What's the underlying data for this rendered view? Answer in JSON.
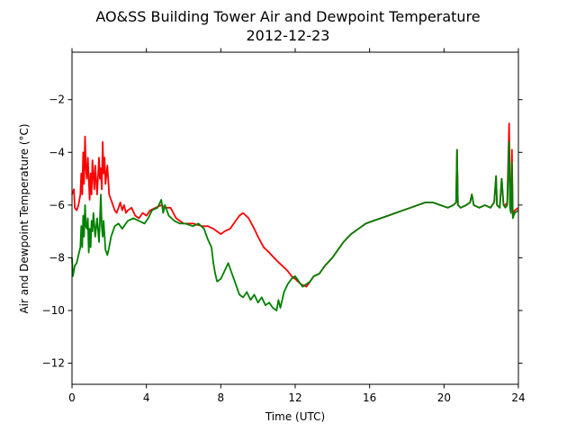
{
  "chart_data": {
    "type": "line",
    "title": "AO&SS Building Tower Air and Dewpoint Temperature",
    "subtitle": "2012-12-23",
    "xlabel": "Time (UTC)",
    "ylabel": "Air and Dewpoint Temperature (°C)",
    "xlim": [
      0,
      24
    ],
    "ylim": [
      -12.8,
      -0.2
    ],
    "xticks": [
      0,
      4,
      8,
      12,
      16,
      20,
      24
    ],
    "yticks": [
      -12,
      -10,
      -8,
      -6,
      -4,
      -2
    ],
    "grid": false,
    "legend": "none",
    "series": [
      {
        "color": "#ff0000",
        "points": [
          [
            0.0,
            -5.6
          ],
          [
            0.1,
            -5.4
          ],
          [
            0.15,
            -6.1
          ],
          [
            0.25,
            -6.2
          ],
          [
            0.35,
            -6.0
          ],
          [
            0.45,
            -5.6
          ],
          [
            0.5,
            -4.8
          ],
          [
            0.55,
            -5.6
          ],
          [
            0.6,
            -4.0
          ],
          [
            0.65,
            -5.2
          ],
          [
            0.7,
            -3.4
          ],
          [
            0.75,
            -4.6
          ],
          [
            0.8,
            -5.0
          ],
          [
            0.85,
            -4.2
          ],
          [
            0.95,
            -5.8
          ],
          [
            1.0,
            -4.8
          ],
          [
            1.05,
            -5.6
          ],
          [
            1.1,
            -4.3
          ],
          [
            1.2,
            -5.4
          ],
          [
            1.25,
            -4.5
          ],
          [
            1.35,
            -5.6
          ],
          [
            1.45,
            -4.2
          ],
          [
            1.5,
            -5.0
          ],
          [
            1.55,
            -4.6
          ],
          [
            1.6,
            -5.4
          ],
          [
            1.65,
            -3.6
          ],
          [
            1.7,
            -4.8
          ],
          [
            1.75,
            -4.2
          ],
          [
            1.8,
            -5.2
          ],
          [
            1.9,
            -4.5
          ],
          [
            2.0,
            -5.6
          ],
          [
            2.1,
            -5.8
          ],
          [
            2.2,
            -6.0
          ],
          [
            2.3,
            -6.2
          ],
          [
            2.4,
            -6.3
          ],
          [
            2.5,
            -6.1
          ],
          [
            2.6,
            -5.9
          ],
          [
            2.7,
            -6.2
          ],
          [
            2.8,
            -6.0
          ],
          [
            2.9,
            -6.3
          ],
          [
            3.0,
            -6.2
          ],
          [
            3.2,
            -6.1
          ],
          [
            3.4,
            -6.4
          ],
          [
            3.6,
            -6.5
          ],
          [
            3.8,
            -6.3
          ],
          [
            4.0,
            -6.4
          ],
          [
            4.2,
            -6.2
          ],
          [
            4.5,
            -6.1
          ],
          [
            4.8,
            -6.0
          ],
          [
            5.0,
            -6.1
          ],
          [
            5.3,
            -6.1
          ],
          [
            5.6,
            -6.5
          ],
          [
            6.0,
            -6.7
          ],
          [
            6.5,
            -6.7
          ],
          [
            7.0,
            -6.8
          ],
          [
            7.3,
            -6.8
          ],
          [
            7.6,
            -6.9
          ],
          [
            7.8,
            -7.0
          ],
          [
            8.0,
            -7.1
          ],
          [
            8.2,
            -7.0
          ],
          [
            8.5,
            -6.9
          ],
          [
            8.8,
            -6.6
          ],
          [
            9.0,
            -6.4
          ],
          [
            9.2,
            -6.3
          ],
          [
            9.5,
            -6.5
          ],
          [
            9.8,
            -6.9
          ],
          [
            10.0,
            -7.2
          ],
          [
            10.3,
            -7.6
          ],
          [
            10.6,
            -7.8
          ],
          [
            11.0,
            -8.1
          ],
          [
            11.3,
            -8.3
          ],
          [
            11.6,
            -8.5
          ],
          [
            11.8,
            -8.7
          ],
          [
            12.0,
            -8.8
          ],
          [
            12.3,
            -9.0
          ],
          [
            12.6,
            -9.1
          ],
          [
            12.8,
            -8.9
          ],
          [
            13.0,
            -8.7
          ],
          [
            13.3,
            -8.6
          ],
          [
            13.6,
            -8.3
          ],
          [
            14.0,
            -8.0
          ],
          [
            14.3,
            -7.7
          ],
          [
            14.6,
            -7.4
          ],
          [
            15.0,
            -7.1
          ],
          [
            15.4,
            -6.9
          ],
          [
            15.8,
            -6.7
          ],
          [
            16.2,
            -6.6
          ],
          [
            16.6,
            -6.5
          ],
          [
            17.0,
            -6.4
          ],
          [
            17.4,
            -6.3
          ],
          [
            17.8,
            -6.2
          ],
          [
            18.2,
            -6.1
          ],
          [
            18.6,
            -6.0
          ],
          [
            19.0,
            -5.9
          ],
          [
            19.4,
            -5.9
          ],
          [
            19.8,
            -6.0
          ],
          [
            20.2,
            -6.1
          ],
          [
            20.5,
            -6.0
          ],
          [
            20.65,
            -5.9
          ],
          [
            20.7,
            -3.9
          ],
          [
            20.75,
            -6.0
          ],
          [
            20.9,
            -6.1
          ],
          [
            21.2,
            -6.0
          ],
          [
            21.4,
            -5.9
          ],
          [
            21.5,
            -5.6
          ],
          [
            21.6,
            -6.0
          ],
          [
            21.9,
            -6.1
          ],
          [
            22.2,
            -6.0
          ],
          [
            22.5,
            -6.1
          ],
          [
            22.7,
            -5.9
          ],
          [
            22.8,
            -4.9
          ],
          [
            22.85,
            -6.0
          ],
          [
            23.0,
            -6.1
          ],
          [
            23.1,
            -5.0
          ],
          [
            23.2,
            -6.0
          ],
          [
            23.3,
            -6.0
          ],
          [
            23.4,
            -5.9
          ],
          [
            23.5,
            -2.9
          ],
          [
            23.55,
            -5.9
          ],
          [
            23.6,
            -6.2
          ],
          [
            23.65,
            -3.9
          ],
          [
            23.7,
            -6.4
          ],
          [
            23.8,
            -6.2
          ],
          [
            24.0,
            -6.1
          ]
        ]
      },
      {
        "color": "#008000",
        "points": [
          [
            0.0,
            -8.0
          ],
          [
            0.05,
            -8.7
          ],
          [
            0.15,
            -8.3
          ],
          [
            0.25,
            -8.2
          ],
          [
            0.35,
            -7.9
          ],
          [
            0.45,
            -7.6
          ],
          [
            0.5,
            -6.8
          ],
          [
            0.55,
            -7.6
          ],
          [
            0.6,
            -6.4
          ],
          [
            0.65,
            -7.2
          ],
          [
            0.7,
            -6.0
          ],
          [
            0.75,
            -6.8
          ],
          [
            0.8,
            -6.9
          ],
          [
            0.85,
            -6.5
          ],
          [
            0.9,
            -7.8
          ],
          [
            0.95,
            -6.9
          ],
          [
            1.0,
            -7.6
          ],
          [
            1.05,
            -6.6
          ],
          [
            1.1,
            -7.0
          ],
          [
            1.15,
            -6.3
          ],
          [
            1.25,
            -7.2
          ],
          [
            1.35,
            -6.5
          ],
          [
            1.45,
            -7.4
          ],
          [
            1.5,
            -6.6
          ],
          [
            1.55,
            -5.6
          ],
          [
            1.6,
            -6.8
          ],
          [
            1.65,
            -7.2
          ],
          [
            1.7,
            -6.6
          ],
          [
            1.8,
            -7.7
          ],
          [
            1.9,
            -7.9
          ],
          [
            2.0,
            -7.6
          ],
          [
            2.1,
            -7.2
          ],
          [
            2.2,
            -7.0
          ],
          [
            2.3,
            -6.8
          ],
          [
            2.5,
            -6.7
          ],
          [
            2.7,
            -6.9
          ],
          [
            3.0,
            -6.6
          ],
          [
            3.3,
            -6.5
          ],
          [
            3.6,
            -6.6
          ],
          [
            3.9,
            -6.7
          ],
          [
            4.1,
            -6.5
          ],
          [
            4.3,
            -6.2
          ],
          [
            4.6,
            -6.1
          ],
          [
            4.8,
            -5.8
          ],
          [
            4.9,
            -6.3
          ],
          [
            5.0,
            -6.0
          ],
          [
            5.2,
            -6.4
          ],
          [
            5.5,
            -6.6
          ],
          [
            5.8,
            -6.7
          ],
          [
            6.1,
            -6.7
          ],
          [
            6.5,
            -6.8
          ],
          [
            6.8,
            -6.7
          ],
          [
            7.1,
            -6.9
          ],
          [
            7.3,
            -7.3
          ],
          [
            7.5,
            -7.6
          ],
          [
            7.6,
            -8.2
          ],
          [
            7.7,
            -8.6
          ],
          [
            7.8,
            -8.9
          ],
          [
            8.0,
            -8.8
          ],
          [
            8.2,
            -8.5
          ],
          [
            8.4,
            -8.2
          ],
          [
            8.6,
            -8.6
          ],
          [
            8.8,
            -9.0
          ],
          [
            9.0,
            -9.4
          ],
          [
            9.2,
            -9.5
          ],
          [
            9.4,
            -9.3
          ],
          [
            9.6,
            -9.6
          ],
          [
            9.8,
            -9.4
          ],
          [
            10.0,
            -9.7
          ],
          [
            10.2,
            -9.5
          ],
          [
            10.4,
            -9.8
          ],
          [
            10.6,
            -9.7
          ],
          [
            10.8,
            -9.9
          ],
          [
            11.0,
            -10.0
          ],
          [
            11.1,
            -9.6
          ],
          [
            11.2,
            -9.9
          ],
          [
            11.4,
            -9.3
          ],
          [
            11.6,
            -9.0
          ],
          [
            11.8,
            -8.8
          ],
          [
            12.0,
            -8.7
          ],
          [
            12.2,
            -8.9
          ],
          [
            12.4,
            -9.1
          ],
          [
            12.6,
            -9.0
          ],
          [
            12.8,
            -8.9
          ],
          [
            13.0,
            -8.7
          ],
          [
            13.3,
            -8.6
          ],
          [
            13.6,
            -8.3
          ],
          [
            14.0,
            -8.0
          ],
          [
            14.3,
            -7.7
          ],
          [
            14.6,
            -7.4
          ],
          [
            15.0,
            -7.1
          ],
          [
            15.4,
            -6.9
          ],
          [
            15.8,
            -6.7
          ],
          [
            16.2,
            -6.6
          ],
          [
            16.6,
            -6.5
          ],
          [
            17.0,
            -6.4
          ],
          [
            17.4,
            -6.3
          ],
          [
            17.8,
            -6.2
          ],
          [
            18.2,
            -6.1
          ],
          [
            18.6,
            -6.0
          ],
          [
            19.0,
            -5.9
          ],
          [
            19.4,
            -5.9
          ],
          [
            19.8,
            -6.0
          ],
          [
            20.2,
            -6.1
          ],
          [
            20.5,
            -6.0
          ],
          [
            20.65,
            -5.9
          ],
          [
            20.7,
            -3.9
          ],
          [
            20.75,
            -6.0
          ],
          [
            20.9,
            -6.1
          ],
          [
            21.2,
            -6.0
          ],
          [
            21.4,
            -5.9
          ],
          [
            21.5,
            -5.6
          ],
          [
            21.6,
            -6.0
          ],
          [
            21.9,
            -6.1
          ],
          [
            22.2,
            -6.0
          ],
          [
            22.5,
            -6.1
          ],
          [
            22.7,
            -5.9
          ],
          [
            22.8,
            -4.9
          ],
          [
            22.85,
            -6.0
          ],
          [
            23.0,
            -6.1
          ],
          [
            23.1,
            -5.0
          ],
          [
            23.2,
            -6.0
          ],
          [
            23.3,
            -6.1
          ],
          [
            23.4,
            -6.0
          ],
          [
            23.5,
            -3.6
          ],
          [
            23.55,
            -6.1
          ],
          [
            23.6,
            -6.3
          ],
          [
            23.65,
            -4.4
          ],
          [
            23.7,
            -6.5
          ],
          [
            23.8,
            -6.3
          ],
          [
            24.0,
            -6.2
          ]
        ]
      }
    ]
  }
}
